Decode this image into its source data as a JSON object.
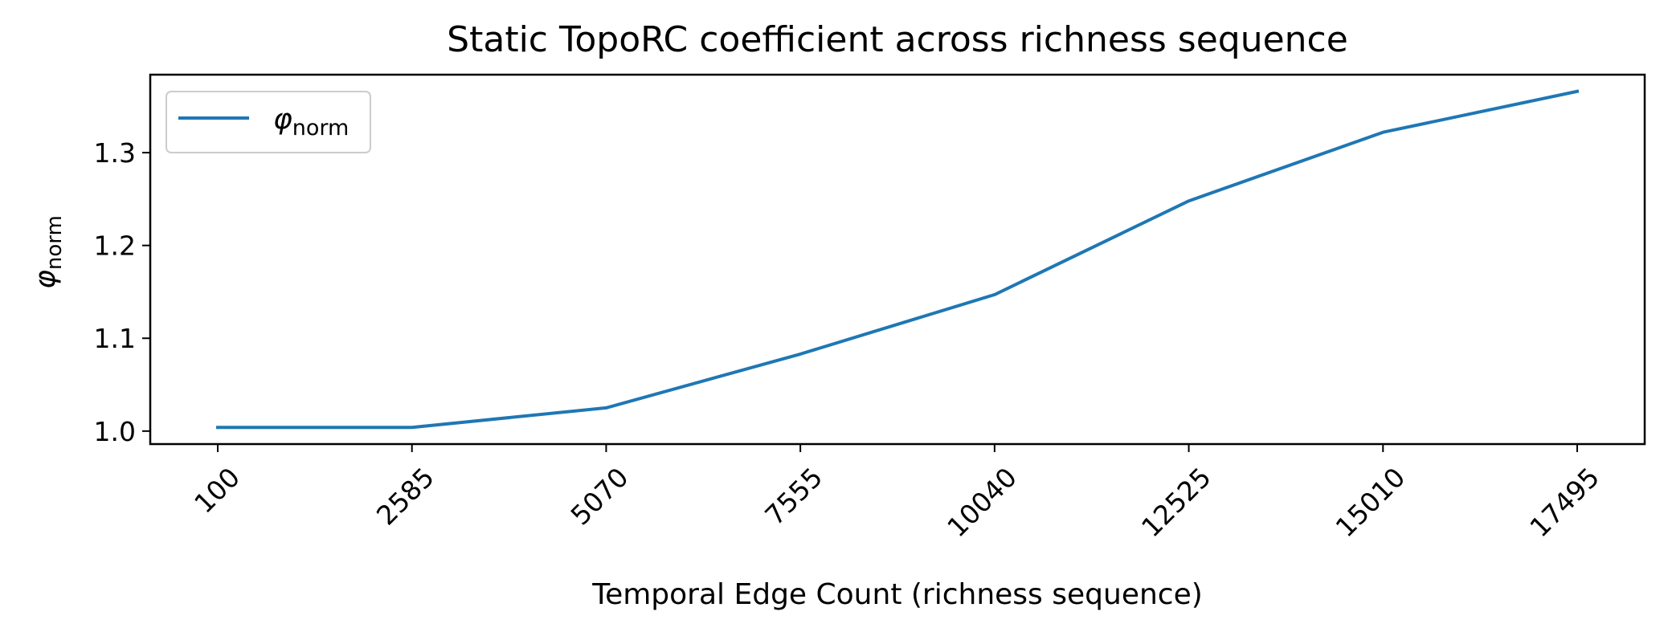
{
  "chart_data": {
    "type": "line",
    "title": "Static TopoRC coefficient across richness sequence",
    "xlabel": "Temporal Edge Count (richness sequence)",
    "ylabel": "φ",
    "ylabel_sub": "norm",
    "categories": [
      "100",
      "2585",
      "5070",
      "7555",
      "10040",
      "12525",
      "15010",
      "17495"
    ],
    "series": [
      {
        "name": "φ",
        "name_sub": "norm",
        "color": "#1f77b4",
        "values": [
          1.004,
          1.004,
          1.025,
          1.083,
          1.147,
          1.248,
          1.322,
          1.366
        ]
      }
    ],
    "ylim": [
      0.986,
      1.384
    ],
    "yticks": [
      "1.0",
      "1.1",
      "1.2",
      "1.3"
    ],
    "ytick_values": [
      1.0,
      1.1,
      1.2,
      1.3
    ],
    "legend": "top-left",
    "grid": false
  }
}
